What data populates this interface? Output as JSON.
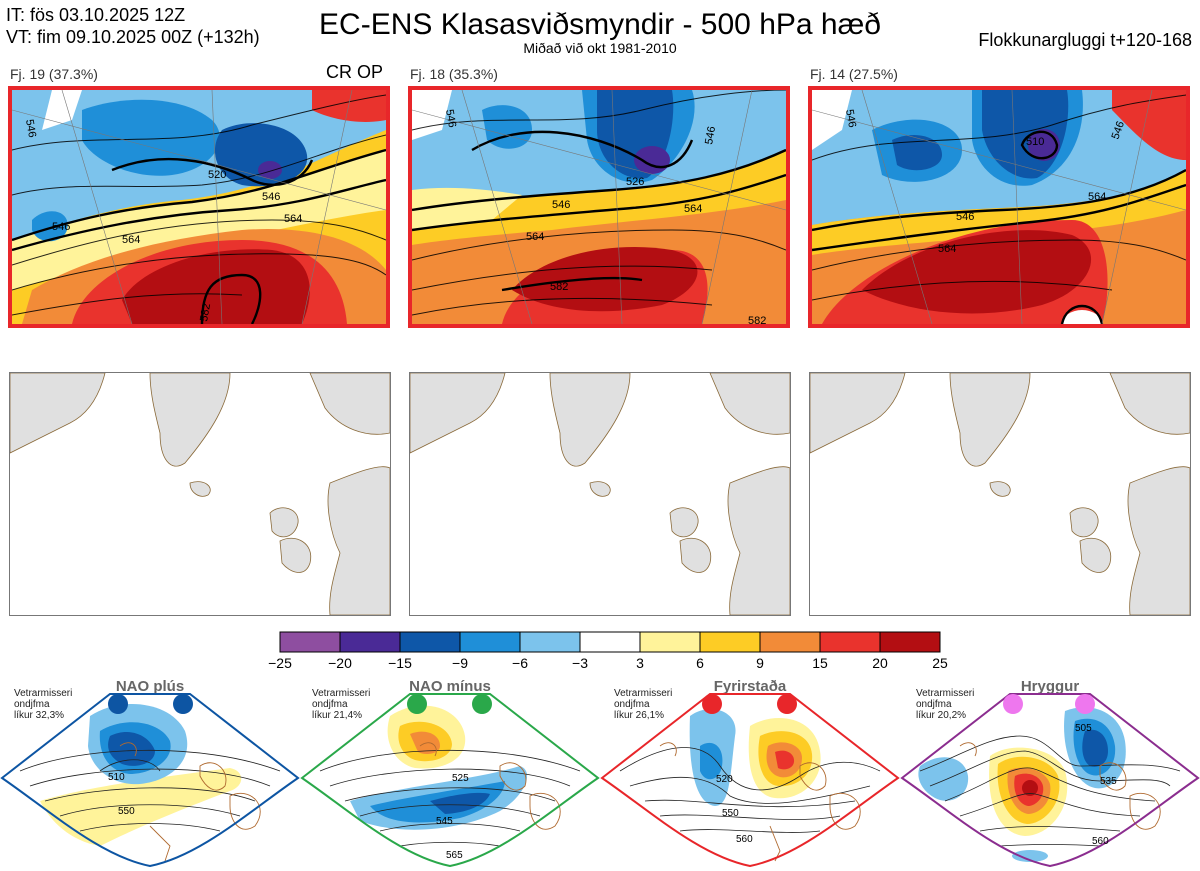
{
  "header": {
    "init_time": "IT: fös 03.10.2025 12Z",
    "valid_time": "VT: fim 09.10.2025 00Z  (+132h)",
    "title": "EC-ENS Klasasviðsmyndir - 500 hPa hæð",
    "subtitle": "Miðað við okt 1981-2010",
    "window": "Flokkunargluggi t+120-168"
  },
  "clusters": [
    {
      "label": "Fj. 19 (37.3%)",
      "flag": "CR OP",
      "contours": [
        "546",
        "520",
        "546",
        "546",
        "564",
        "564",
        "582"
      ]
    },
    {
      "label": "Fj. 18 (35.3%)",
      "flag": "",
      "contours": [
        "546",
        "526",
        "546",
        "546",
        "564",
        "564",
        "582",
        "582"
      ]
    },
    {
      "label": "Fj. 14 (27.5%)",
      "flag": "",
      "contours": [
        "546",
        "510",
        "546",
        "546",
        "564",
        "564"
      ]
    }
  ],
  "colorbar": {
    "ticks": [
      "−25",
      "−20",
      "−15",
      "−9",
      "−6",
      "−3",
      "3",
      "6",
      "9",
      "15",
      "20",
      "25"
    ],
    "colors": [
      "#8e4ea0",
      "#4a2a96",
      "#0e57a8",
      "#1f8fd8",
      "#7cc3ec",
      "#ffffff",
      "#fff39a",
      "#fdcc25",
      "#f28b38",
      "#e9332d",
      "#b30e12"
    ]
  },
  "regimes": [
    {
      "name": "NAO plús",
      "stats": [
        "Vetrarmisseri",
        "ondjfma",
        "líkur 32,3%"
      ],
      "border": "#0d55a3",
      "dot": "#0d55a3",
      "contours": [
        "510",
        "550"
      ]
    },
    {
      "name": "NAO mínus",
      "stats": [
        "Vetrarmisseri",
        "ondjfma",
        "líkur 21,4%"
      ],
      "border": "#2aa84a",
      "dot": "#2aa84a",
      "contours": [
        "525",
        "545",
        "565"
      ]
    },
    {
      "name": "Fyrirstaða",
      "stats": [
        "Vetrarmisseri",
        "ondjfma",
        "líkur 26,1%"
      ],
      "border": "#e8262a",
      "dot": "#e8262a",
      "contours": [
        "520",
        "550",
        "560"
      ]
    },
    {
      "name": "Hryggur",
      "stats": [
        "Vetrarmisseri",
        "ondjfma",
        "líkur 20,2%"
      ],
      "border": "#8b2d8f",
      "dot": "#ee77ee",
      "contours": [
        "505",
        "535",
        "560"
      ]
    }
  ],
  "chart_data": {
    "type": "heatmap",
    "title": "EC-ENS Klasasviðsmyndir - 500 hPa hæð",
    "subtitle": "Miðað við okt 1981-2010",
    "series": [
      {
        "name": "Fj. 19",
        "probability_pct": 37.3
      },
      {
        "name": "Fj. 18",
        "probability_pct": 35.3
      },
      {
        "name": "Fj. 14",
        "probability_pct": 27.5
      }
    ],
    "anomaly_levels": [
      -25,
      -20,
      -15,
      -9,
      -6,
      -3,
      3,
      6,
      9,
      15,
      20,
      25
    ],
    "regime_probabilities_pct": {
      "NAO plús": 32.3,
      "NAO mínus": 21.4,
      "Fyrirstaða": 26.1,
      "Hryggur": 20.2
    }
  }
}
